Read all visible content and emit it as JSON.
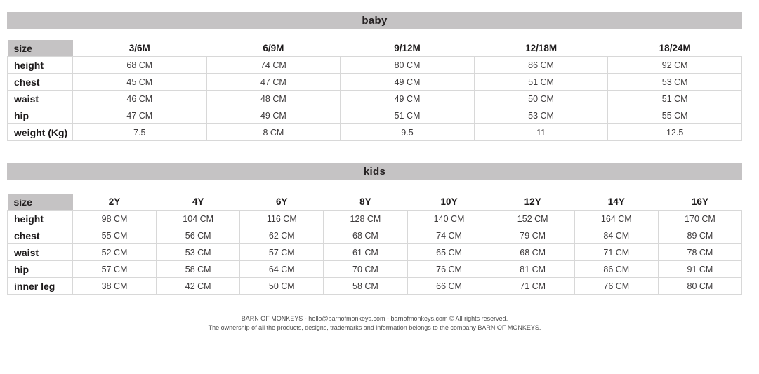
{
  "colors": {
    "bar_background": "#c5c3c4",
    "size_cell_background": "#c5c3c4",
    "table_border": "#d8d8d8",
    "label_text": "#1c191a",
    "value_text": "#3d3a3b",
    "footer_text": "#4c4c4c"
  },
  "sections": [
    {
      "id": "baby",
      "title": "baby",
      "size_label": "size",
      "columns": [
        "3/6M",
        "6/9M",
        "9/12M",
        "12/18M",
        "18/24M"
      ],
      "rows": [
        {
          "label": "height",
          "values": [
            "68 CM",
            "74 CM",
            "80 CM",
            "86 CM",
            "92 CM"
          ]
        },
        {
          "label": "chest",
          "values": [
            "45 CM",
            "47 CM",
            "49 CM",
            "51 CM",
            "53 CM"
          ]
        },
        {
          "label": "waist",
          "values": [
            "46 CM",
            "48 CM",
            "49 CM",
            "50 CM",
            "51 CM"
          ]
        },
        {
          "label": "hip",
          "values": [
            "47 CM",
            "49 CM",
            "51 CM",
            "53 CM",
            "55 CM"
          ]
        },
        {
          "label": "weight (Kg)",
          "values": [
            "7.5",
            "8 CM",
            "9.5",
            "11",
            "12.5"
          ]
        }
      ]
    },
    {
      "id": "kids",
      "title": "kids",
      "size_label": "size",
      "columns": [
        "2Y",
        "4Y",
        "6Y",
        "8Y",
        "10Y",
        "12Y",
        "14Y",
        "16Y"
      ],
      "rows": [
        {
          "label": "height",
          "values": [
            "98 CM",
            "104 CM",
            "116 CM",
            "128 CM",
            "140 CM",
            "152 CM",
            "164 CM",
            "170 CM"
          ]
        },
        {
          "label": "chest",
          "values": [
            "55 CM",
            "56 CM",
            "62 CM",
            "68 CM",
            "74 CM",
            "79 CM",
            "84 CM",
            "89 CM"
          ]
        },
        {
          "label": "waist",
          "values": [
            "52 CM",
            "53 CM",
            "57 CM",
            "61 CM",
            "65 CM",
            "68 CM",
            "71 CM",
            "78 CM"
          ]
        },
        {
          "label": "hip",
          "values": [
            "57 CM",
            "58 CM",
            "64 CM",
            "70 CM",
            "76 CM",
            "81 CM",
            "86 CM",
            "91 CM"
          ]
        },
        {
          "label": "inner leg",
          "values": [
            "38 CM",
            "42 CM",
            "50 CM",
            "58 CM",
            "66 CM",
            "71 CM",
            "76 CM",
            "80 CM"
          ]
        }
      ]
    }
  ],
  "footer": {
    "line1": "BARN OF MONKEYS - hello@barnofmonkeys.com - barnofmonkeys.com © All rights reserved.",
    "line2": "The ownership of all the products, designs, trademarks and information belongs to the company BARN OF MONKEYS."
  }
}
